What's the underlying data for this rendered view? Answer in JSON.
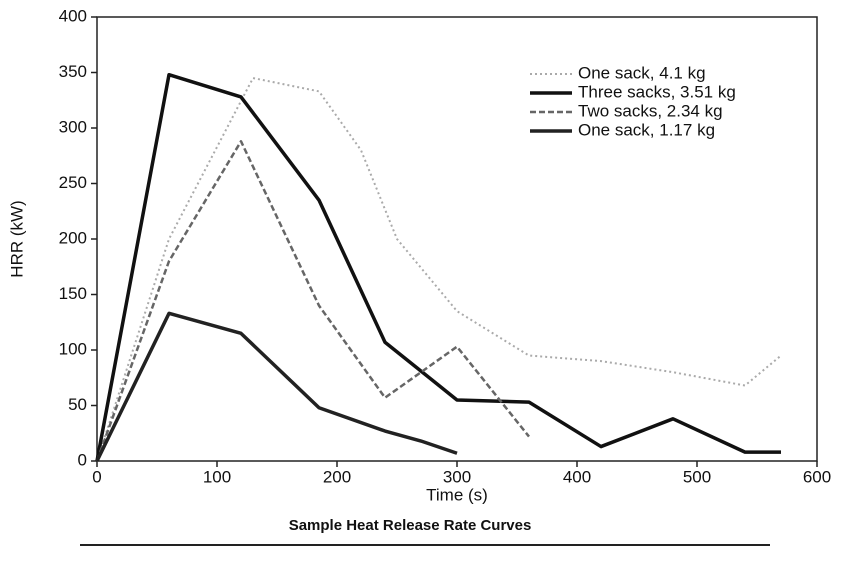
{
  "chart_data": {
    "type": "line",
    "title": "Sample Heat Release Rate Curves",
    "x_label": "Time (s)",
    "y_label": "HRR (kW)",
    "xlim": [
      0,
      600
    ],
    "xticks": [
      0,
      100,
      200,
      300,
      400,
      500,
      600
    ],
    "ylim": [
      0,
      400
    ],
    "yticks": [
      0,
      50,
      100,
      150,
      200,
      250,
      300,
      350,
      400
    ],
    "legend": "upper right",
    "series": [
      {
        "name": "One sack, 4.1 kg",
        "color": "#aaaaaa",
        "style": "dotted",
        "x": [
          0,
          60,
          130,
          185,
          220,
          250,
          300,
          360,
          420,
          480,
          540,
          570
        ],
        "values": [
          0,
          200,
          345,
          333,
          280,
          200,
          135,
          95,
          90,
          80,
          68,
          95
        ]
      },
      {
        "name": "Three sacks, 3.51 kg",
        "color": "#111111",
        "style": "solid",
        "x": [
          0,
          60,
          120,
          185,
          240,
          300,
          360,
          420,
          480,
          540,
          570
        ],
        "values": [
          0,
          348,
          328,
          235,
          107,
          55,
          53,
          13,
          38,
          8,
          8
        ]
      },
      {
        "name": "Two sacks, 2.34 kg",
        "color": "#666666",
        "style": "dashed",
        "x": [
          0,
          60,
          120,
          185,
          240,
          300,
          360
        ],
        "values": [
          0,
          180,
          288,
          140,
          57,
          103,
          22
        ]
      },
      {
        "name": "One sack, 1.17 kg",
        "color": "#222222",
        "style": "solid",
        "x": [
          0,
          60,
          120,
          185,
          240,
          270,
          300
        ],
        "values": [
          0,
          133,
          115,
          48,
          27,
          18,
          7
        ]
      }
    ]
  }
}
